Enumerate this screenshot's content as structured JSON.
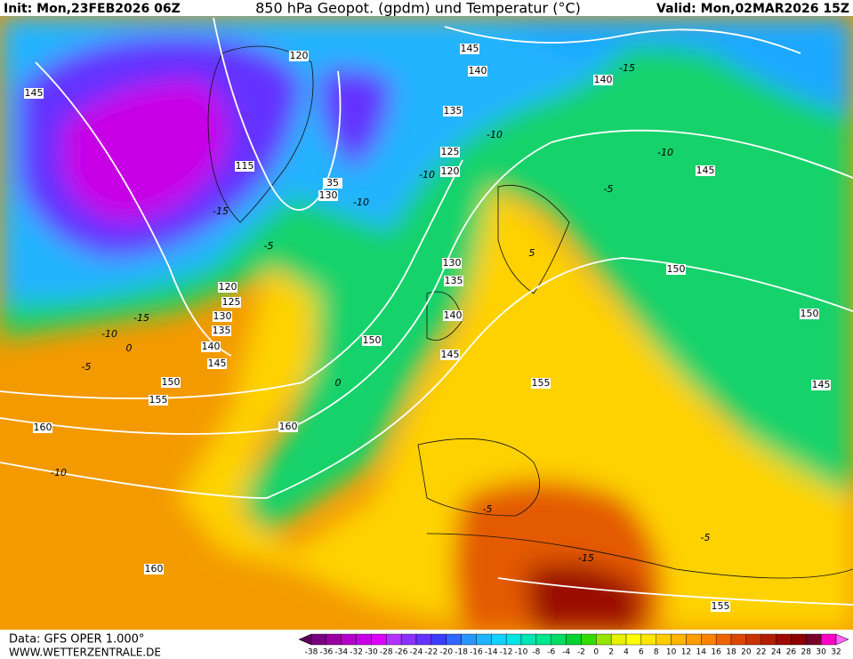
{
  "header": {
    "init": "Init: Mon,23FEB2026 06Z",
    "title": "850 hPa Geopot. (gpdm) und Temperatur (°C)",
    "valid": "Valid: Mon,02MAR2026 15Z"
  },
  "footer": {
    "data": "Data: GFS OPER 1.000°",
    "website": "WWW.WETTERZENTRALE.DE"
  },
  "colorbar": {
    "ticks": [
      -38,
      -36,
      -34,
      -32,
      -30,
      -28,
      -26,
      -24,
      -22,
      -20,
      -18,
      -16,
      -14,
      -12,
      -10,
      -8,
      -6,
      -4,
      -2,
      0,
      2,
      4,
      6,
      8,
      10,
      12,
      14,
      16,
      18,
      20,
      22,
      24,
      26,
      28,
      30,
      32
    ],
    "colors": [
      "#5a005a",
      "#7a0080",
      "#9a00a0",
      "#b400c8",
      "#c800e6",
      "#dc00ff",
      "#b432ff",
      "#8c32ff",
      "#6432ff",
      "#3c3cff",
      "#3264ff",
      "#2896ff",
      "#1eb4ff",
      "#14d2ff",
      "#00e6e6",
      "#00e6b4",
      "#00e68c",
      "#00dc64",
      "#00d232",
      "#32dc00",
      "#96e600",
      "#e6f000",
      "#ffff00",
      "#ffe600",
      "#ffcc00",
      "#ffb400",
      "#ff9c00",
      "#ff8200",
      "#f06400",
      "#dc4600",
      "#c83200",
      "#b41e00",
      "#a00a00",
      "#8c0000",
      "#780028",
      "#ff00c8",
      "#ff64ff"
    ]
  },
  "map": {
    "geopotential_labels": [
      "145",
      "120",
      "145",
      "140",
      "140",
      "135",
      "115",
      "125",
      "120",
      "35",
      "130",
      "145",
      "130",
      "135",
      "120",
      "125",
      "130",
      "135",
      "140",
      "145",
      "140",
      "150",
      "150",
      "150",
      "145",
      "150",
      "155",
      "155",
      "145",
      "160",
      "160",
      "160",
      "155"
    ],
    "temperature_labels": [
      "-15",
      "-10",
      "-10",
      "-5",
      "-10",
      "-15",
      "-10",
      "-5",
      "-15",
      "-10",
      "0",
      "-5",
      "0",
      "-10",
      "5",
      "-5",
      "-15",
      "-5"
    ]
  }
}
